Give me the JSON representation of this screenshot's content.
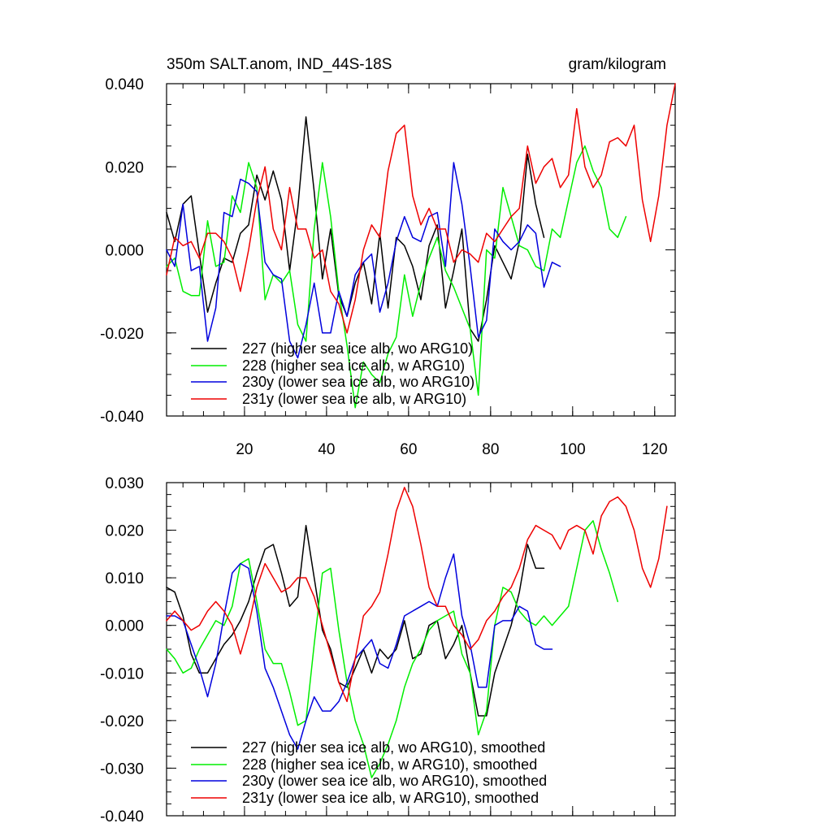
{
  "chart_data": [
    {
      "type": "line",
      "title": "350m SALT.anom, IND_44S-18S",
      "units": "gram/kilogram",
      "xlim": [
        1,
        125
      ],
      "ylim": [
        -0.04,
        0.04
      ],
      "yticks": [
        "0.040",
        "0.020",
        "0.000",
        "-0.020",
        "-0.040"
      ],
      "ytick_values": [
        0.04,
        0.02,
        0.0,
        -0.02,
        -0.04
      ],
      "xticks": [
        "20",
        "40",
        "60",
        "80",
        "100",
        "120"
      ],
      "xtick_values": [
        20,
        40,
        60,
        80,
        100,
        120
      ],
      "series": [
        {
          "name": "227 (higher sea ice alb, wo ARG10)",
          "color": "#000000",
          "x": [
            1,
            3,
            5,
            7,
            9,
            11,
            13,
            15,
            17,
            19,
            21,
            23,
            25,
            27,
            29,
            31,
            33,
            35,
            37,
            39,
            41,
            43,
            45,
            47,
            49,
            51,
            53,
            55,
            57,
            59,
            61,
            63,
            65,
            67,
            69,
            71,
            73,
            75,
            77,
            79,
            81,
            83,
            85,
            87,
            89,
            91,
            93
          ],
          "y": [
            0.009,
            0.002,
            0.011,
            0.013,
            -0.001,
            -0.015,
            -0.008,
            -0.002,
            -0.003,
            0.004,
            0.006,
            0.018,
            0.012,
            0.019,
            0.012,
            -0.005,
            0.01,
            0.032,
            0.014,
            -0.007,
            0.005,
            -0.011,
            -0.016,
            -0.008,
            -0.003,
            -0.013,
            0.004,
            -0.014,
            0.003,
            0.001,
            -0.004,
            -0.012,
            0.001,
            0.006,
            -0.014,
            -0.005,
            0.005,
            -0.019,
            -0.022,
            -0.012,
            0.001,
            -0.003,
            -0.007,
            0.002,
            0.023,
            0.011,
            0.003
          ]
        },
        {
          "name": "228 (higher sea ice alb, w ARG10)",
          "color": "#00ee00",
          "x": [
            1,
            3,
            5,
            7,
            9,
            11,
            13,
            15,
            17,
            19,
            21,
            23,
            25,
            27,
            29,
            31,
            33,
            35,
            37,
            39,
            41,
            43,
            45,
            47,
            49,
            51,
            53,
            55,
            57,
            59,
            61,
            63,
            65,
            67,
            69,
            71,
            73,
            75,
            77,
            79,
            81,
            83,
            85,
            87,
            89,
            91,
            93,
            95,
            97,
            99,
            101,
            103,
            105,
            107,
            109,
            111,
            113
          ],
          "y": [
            -0.004,
            -0.002,
            -0.01,
            -0.011,
            -0.011,
            0.007,
            -0.004,
            -0.003,
            0.013,
            0.009,
            0.021,
            0.015,
            -0.012,
            -0.006,
            -0.008,
            -0.005,
            -0.018,
            -0.022,
            0.005,
            0.021,
            0.008,
            -0.01,
            -0.023,
            -0.038,
            -0.027,
            -0.03,
            -0.032,
            -0.025,
            -0.021,
            -0.006,
            -0.016,
            -0.008,
            -0.002,
            0.003,
            -0.005,
            -0.009,
            -0.014,
            -0.019,
            -0.035,
            0.0,
            -0.002,
            0.015,
            0.008,
            0.001,
            0.0,
            -0.004,
            -0.005,
            0.005,
            0.003,
            0.012,
            0.021,
            0.025,
            0.019,
            0.015,
            0.005,
            0.003,
            0.008
          ]
        },
        {
          "name": "230y (lower sea ice alb, wo ARG10)",
          "color": "#0000dd",
          "x": [
            1,
            3,
            5,
            7,
            9,
            11,
            13,
            15,
            17,
            19,
            21,
            23,
            25,
            27,
            29,
            31,
            33,
            35,
            37,
            39,
            41,
            43,
            45,
            47,
            49,
            51,
            53,
            55,
            57,
            59,
            61,
            63,
            65,
            67,
            69,
            71,
            73,
            75,
            77,
            79,
            81,
            83,
            85,
            87,
            89,
            91,
            93,
            95,
            97
          ],
          "y": [
            0.0,
            -0.004,
            0.011,
            -0.005,
            -0.004,
            -0.022,
            -0.014,
            0.009,
            0.008,
            0.017,
            0.016,
            0.014,
            -0.003,
            -0.006,
            -0.007,
            -0.022,
            -0.026,
            -0.018,
            -0.008,
            -0.02,
            -0.02,
            -0.01,
            -0.016,
            -0.006,
            -0.003,
            -0.001,
            -0.015,
            -0.008,
            0.002,
            0.008,
            0.003,
            0.002,
            0.008,
            0.009,
            -0.004,
            0.021,
            0.011,
            -0.004,
            -0.021,
            -0.017,
            0.005,
            0.002,
            0.0,
            0.002,
            0.006,
            0.004,
            -0.009,
            -0.003,
            -0.004
          ]
        },
        {
          "name": "231y (lower sea ice alb, w ARG10)",
          "color": "#ee0000",
          "x": [
            1,
            3,
            5,
            7,
            9,
            11,
            13,
            15,
            17,
            19,
            21,
            23,
            25,
            27,
            29,
            31,
            33,
            35,
            37,
            39,
            41,
            43,
            45,
            47,
            49,
            51,
            53,
            55,
            57,
            59,
            61,
            63,
            65,
            67,
            69,
            71,
            73,
            75,
            77,
            79,
            81,
            83,
            85,
            87,
            89,
            91,
            93,
            95,
            97,
            99,
            101,
            103,
            105,
            107,
            109,
            111,
            113,
            115,
            117,
            119,
            121,
            123,
            125
          ],
          "y": [
            -0.006,
            0.003,
            0.001,
            0.002,
            -0.002,
            0.004,
            0.004,
            0.002,
            -0.002,
            -0.01,
            0.0,
            0.012,
            0.02,
            0.005,
            0.0,
            0.015,
            0.005,
            0.005,
            -0.002,
            0.0,
            -0.01,
            -0.013,
            -0.02,
            -0.012,
            0.0,
            0.006,
            0.003,
            0.019,
            0.028,
            0.03,
            0.013,
            0.006,
            0.01,
            0.005,
            0.005,
            -0.003,
            0.0,
            -0.001,
            -0.003,
            0.004,
            0.002,
            0.005,
            0.008,
            0.01,
            0.025,
            0.016,
            0.02,
            0.022,
            0.015,
            0.018,
            0.034,
            0.02,
            0.015,
            0.018,
            0.026,
            0.027,
            0.025,
            0.03,
            0.012,
            0.002,
            0.013,
            0.03,
            0.04
          ]
        }
      ]
    },
    {
      "type": "line",
      "title": "",
      "xlim": [
        1,
        125
      ],
      "ylim": [
        -0.04,
        0.03
      ],
      "yticks": [
        "0.030",
        "0.020",
        "0.010",
        "0.000",
        "-0.010",
        "-0.020",
        "-0.030",
        "-0.040"
      ],
      "ytick_values": [
        0.03,
        0.02,
        0.01,
        0.0,
        -0.01,
        -0.02,
        -0.03,
        -0.04
      ],
      "xtick_values": [
        20,
        40,
        60,
        80,
        100,
        120
      ],
      "series": [
        {
          "name": "227 (higher sea ice alb, wo ARG10), smoothed",
          "color": "#000000",
          "x": [
            1,
            3,
            5,
            7,
            9,
            11,
            13,
            15,
            17,
            19,
            21,
            23,
            25,
            27,
            29,
            31,
            33,
            35,
            37,
            39,
            41,
            43,
            45,
            47,
            49,
            51,
            53,
            55,
            57,
            59,
            61,
            63,
            65,
            67,
            69,
            71,
            73,
            75,
            77,
            79,
            81,
            83,
            85,
            87,
            89,
            91,
            93
          ],
          "y": [
            0.008,
            0.007,
            0.002,
            -0.006,
            -0.01,
            -0.01,
            -0.007,
            -0.004,
            -0.002,
            0.001,
            0.005,
            0.011,
            0.016,
            0.017,
            0.011,
            0.004,
            0.006,
            0.021,
            0.01,
            -0.001,
            -0.005,
            -0.012,
            -0.013,
            -0.009,
            -0.005,
            -0.01,
            -0.005,
            -0.007,
            -0.005,
            0.001,
            -0.007,
            -0.006,
            0.0,
            0.001,
            -0.007,
            -0.004,
            0.0,
            -0.01,
            -0.019,
            -0.019,
            -0.01,
            -0.005,
            0.0,
            0.007,
            0.017,
            0.012,
            0.012
          ]
        },
        {
          "name": "228 (higher sea ice alb, w ARG10), smoothed",
          "color": "#00ee00",
          "x": [
            1,
            3,
            5,
            7,
            9,
            11,
            13,
            15,
            17,
            19,
            21,
            23,
            25,
            27,
            29,
            31,
            33,
            35,
            37,
            39,
            41,
            43,
            45,
            47,
            49,
            51,
            53,
            55,
            57,
            59,
            61,
            63,
            65,
            67,
            69,
            71,
            73,
            75,
            77,
            79,
            81,
            83,
            85,
            87,
            89,
            91,
            93,
            95,
            97,
            99,
            101,
            103,
            105,
            107,
            109,
            111
          ],
          "y": [
            -0.005,
            -0.007,
            -0.01,
            -0.009,
            -0.005,
            -0.002,
            0.001,
            0.0,
            0.004,
            0.013,
            0.014,
            0.005,
            -0.005,
            -0.008,
            -0.008,
            -0.014,
            -0.021,
            -0.02,
            -0.004,
            0.011,
            0.012,
            -0.001,
            -0.012,
            -0.02,
            -0.025,
            -0.032,
            -0.029,
            -0.025,
            -0.02,
            -0.013,
            -0.008,
            -0.005,
            -0.001,
            0.001,
            0.002,
            0.003,
            -0.006,
            -0.01,
            -0.023,
            -0.018,
            0.0,
            0.008,
            0.007,
            0.003,
            0.001,
            0.0,
            0.002,
            0.0,
            0.002,
            0.004,
            0.012,
            0.02,
            0.022,
            0.016,
            0.011,
            0.005
          ]
        },
        {
          "name": "230y (lower sea ice alb, wo ARG10), smoothed",
          "color": "#0000dd",
          "x": [
            1,
            3,
            5,
            7,
            9,
            11,
            13,
            15,
            17,
            19,
            21,
            23,
            25,
            27,
            29,
            31,
            33,
            35,
            37,
            39,
            41,
            43,
            45,
            47,
            49,
            51,
            53,
            55,
            57,
            59,
            61,
            63,
            65,
            67,
            69,
            71,
            73,
            75,
            77,
            79,
            81,
            83,
            85,
            87,
            89,
            91,
            93,
            95
          ],
          "y": [
            0.002,
            0.002,
            0.001,
            -0.004,
            -0.009,
            -0.015,
            -0.008,
            0.002,
            0.011,
            0.013,
            0.012,
            0.003,
            -0.009,
            -0.013,
            -0.018,
            -0.023,
            -0.026,
            -0.02,
            -0.015,
            -0.018,
            -0.018,
            -0.016,
            -0.012,
            -0.007,
            -0.005,
            -0.003,
            -0.008,
            -0.009,
            -0.004,
            0.002,
            0.003,
            0.004,
            0.005,
            0.004,
            0.01,
            0.015,
            0.002,
            -0.004,
            -0.013,
            -0.013,
            0.0,
            0.001,
            0.001,
            0.004,
            0.003,
            -0.004,
            -0.005,
            -0.005
          ]
        },
        {
          "name": "231y (lower sea ice alb, w ARG10), smoothed",
          "color": "#ee0000",
          "x": [
            1,
            3,
            5,
            7,
            9,
            11,
            13,
            15,
            17,
            19,
            21,
            23,
            25,
            27,
            29,
            31,
            33,
            35,
            37,
            39,
            41,
            43,
            45,
            47,
            49,
            51,
            53,
            55,
            57,
            59,
            61,
            63,
            65,
            67,
            69,
            71,
            73,
            75,
            77,
            79,
            81,
            83,
            85,
            87,
            89,
            91,
            93,
            95,
            97,
            99,
            101,
            103,
            105,
            107,
            109,
            111,
            113,
            115,
            117,
            119,
            121,
            123
          ],
          "y": [
            0.001,
            0.003,
            0.001,
            -0.001,
            0.0,
            0.003,
            0.005,
            0.003,
            0.0,
            -0.006,
            0.0,
            0.008,
            0.013,
            0.01,
            0.007,
            0.008,
            0.01,
            0.01,
            0.006,
            0.0,
            -0.006,
            -0.012,
            -0.016,
            -0.007,
            0.002,
            0.004,
            0.007,
            0.015,
            0.024,
            0.029,
            0.025,
            0.017,
            0.008,
            0.004,
            0.004,
            0.0,
            -0.002,
            -0.005,
            -0.003,
            0.001,
            0.003,
            0.006,
            0.008,
            0.012,
            0.018,
            0.021,
            0.02,
            0.019,
            0.016,
            0.02,
            0.021,
            0.02,
            0.015,
            0.023,
            0.026,
            0.027,
            0.025,
            0.02,
            0.012,
            0.008,
            0.014,
            0.025
          ]
        }
      ]
    }
  ]
}
